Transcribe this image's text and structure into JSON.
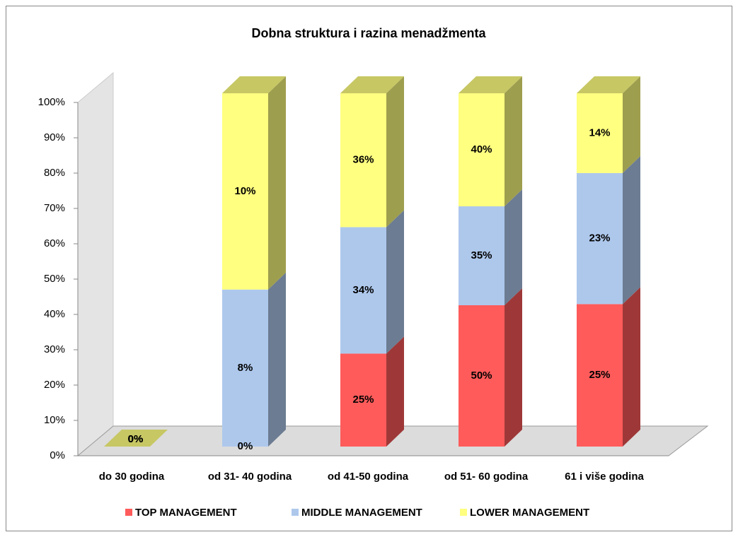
{
  "chart_data": {
    "type": "bar",
    "percent_stacked": true,
    "title": "Dobna struktura i razina menadžmenta",
    "categories": [
      "do 30 godina",
      "od 31- 40 godina",
      "od 41-50 godina",
      "od 51- 60 godina",
      "61 i više godina"
    ],
    "series": [
      {
        "name": "TOP MANAGEMENT",
        "color": "#ff5b5b",
        "values": [
          0,
          0,
          25,
          50,
          25
        ],
        "value_labels": [
          "0%",
          "0%",
          "25%",
          "50%",
          "25%"
        ]
      },
      {
        "name": "MIDDLE MANAGEMENT",
        "color": "#aec8ec",
        "values": [
          0,
          8,
          34,
          35,
          23
        ],
        "value_labels": [
          "0%",
          "8%",
          "34%",
          "35%",
          "23%"
        ]
      },
      {
        "name": "LOWER MANAGEMENT",
        "color": "#ffff80",
        "values": [
          0,
          10,
          36,
          40,
          14
        ],
        "value_labels": [
          "0%",
          "10%",
          "36%",
          "40%",
          "14%"
        ]
      }
    ],
    "ylim": [
      0,
      100
    ],
    "yticks": [
      {
        "value": 0,
        "label": "0%"
      },
      {
        "value": 10,
        "label": "10%"
      },
      {
        "value": 20,
        "label": "20%"
      },
      {
        "value": 30,
        "label": "30%"
      },
      {
        "value": 40,
        "label": "40%"
      },
      {
        "value": 50,
        "label": "50%"
      },
      {
        "value": 60,
        "label": "60%"
      },
      {
        "value": 70,
        "label": "70%"
      },
      {
        "value": 80,
        "label": "80%"
      },
      {
        "value": 90,
        "label": "90%"
      },
      {
        "value": 100,
        "label": "100%"
      }
    ],
    "legend": "bottom"
  }
}
